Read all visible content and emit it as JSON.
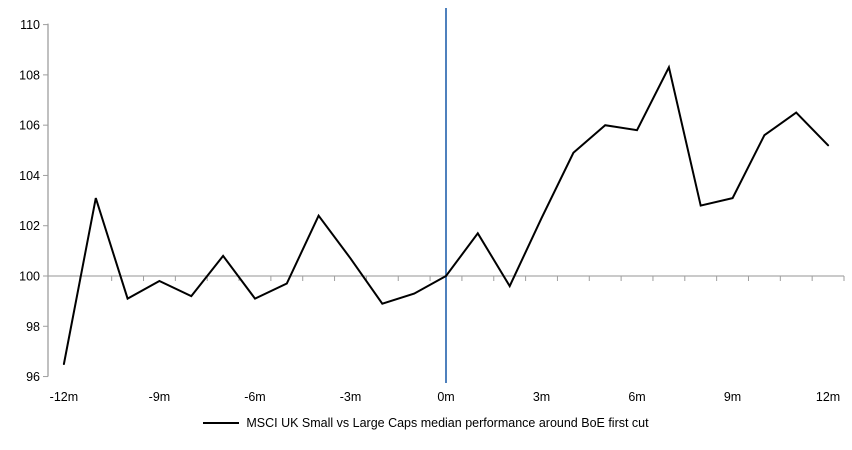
{
  "chart_data": {
    "type": "line",
    "title": "",
    "xlabel": "",
    "ylabel": "",
    "legend": "MSCI UK Small vs Large Caps median performance around BoE first cut",
    "legend_position": "bottom",
    "x": [
      -12,
      -11,
      -10,
      -9,
      -8,
      -7,
      -6,
      -5,
      -4,
      -3,
      -2,
      -1,
      0,
      1,
      2,
      3,
      4,
      5,
      6,
      7,
      8,
      9,
      10,
      11,
      12
    ],
    "series": [
      {
        "name": "MSCI UK Small vs Large Caps median performance around BoE first cut",
        "values": [
          96.5,
          103.1,
          99.1,
          99.8,
          99.2,
          100.8,
          99.1,
          99.7,
          102.4,
          100.7,
          98.9,
          99.3,
          100.0,
          101.7,
          99.6,
          102.3,
          104.9,
          106.0,
          105.8,
          108.3,
          102.8,
          103.1,
          105.6,
          106.5,
          105.2
        ]
      }
    ],
    "x_tick_values": [
      -12,
      -9,
      -6,
      -3,
      0,
      3,
      6,
      9,
      12
    ],
    "x_tick_labels": [
      "-12m",
      "-9m",
      "-6m",
      "-3m",
      "0m",
      "3m",
      "6m",
      "9m",
      "12m"
    ],
    "y_ticks": [
      96,
      98,
      100,
      102,
      104,
      106,
      108,
      110
    ],
    "ylim": [
      96,
      110
    ],
    "xlim": [
      -12.5,
      12.5
    ],
    "baseline_value": 100,
    "event_line_x": 0,
    "grid": "baseline-only",
    "colors": {
      "series": "#000000",
      "event_line": "#4F81BD",
      "baseline": "#ABABAB",
      "axis": "#9E9E9E",
      "text": "#000000",
      "background": "#FFFFFF"
    }
  }
}
